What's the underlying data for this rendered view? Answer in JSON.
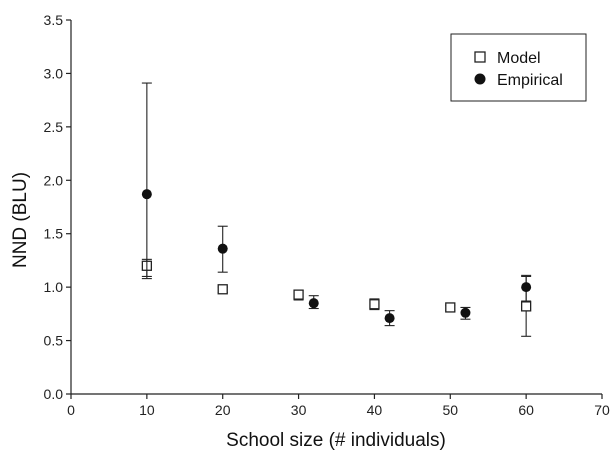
{
  "chart_data": {
    "type": "scatter",
    "title": "",
    "xlabel": "School size (# individuals)",
    "ylabel": "NND (BLU)",
    "xlim": [
      0,
      70
    ],
    "ylim": [
      0,
      3.5
    ],
    "xticks": [
      0,
      10,
      20,
      30,
      40,
      50,
      60,
      70
    ],
    "yticks": [
      0.0,
      0.5,
      1.0,
      1.5,
      2.0,
      2.5,
      3.0,
      3.5
    ],
    "xtick_labels": [
      "0",
      "10",
      "20",
      "30",
      "40",
      "50",
      "60",
      "70"
    ],
    "ytick_labels": [
      "0.0",
      "0.5",
      "1.0",
      "1.5",
      "2.0",
      "2.5",
      "3.0",
      "3.5"
    ],
    "grid": false,
    "legend_position": "top-right",
    "series": [
      {
        "name": "Model",
        "marker": "open-square",
        "x": [
          10,
          20,
          30,
          40,
          50,
          60
        ],
        "y": [
          1.2,
          0.98,
          0.93,
          0.84,
          0.81,
          0.82
        ],
        "err_low": [
          1.1,
          0.95,
          0.88,
          0.79,
          0.78,
          0.54
        ],
        "err_high": [
          1.26,
          1.0,
          0.97,
          0.89,
          0.83,
          1.1
        ]
      },
      {
        "name": "Empirical",
        "marker": "filled-circle",
        "x": [
          10,
          20,
          32,
          42,
          52,
          60
        ],
        "y": [
          1.87,
          1.36,
          0.85,
          0.71,
          0.76,
          1.0
        ],
        "err_low": [
          1.08,
          1.14,
          0.8,
          0.64,
          0.7,
          0.87
        ],
        "err_high": [
          2.91,
          1.57,
          0.92,
          0.78,
          0.81,
          1.11
        ]
      }
    ]
  }
}
